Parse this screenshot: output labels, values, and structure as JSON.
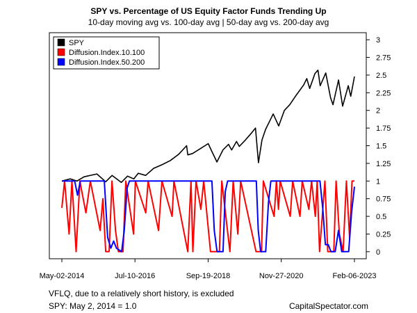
{
  "chart_data": {
    "type": "line",
    "title": "SPY vs. Percentage of US Equity Factor Funds Trending Up",
    "subtitle": "10-day moving avg vs. 100-day avg | 50-day avg vs. 200-day avg",
    "x_tick_labels": [
      "May-02-2014",
      "Jul-10-2016",
      "Sep-19-2018",
      "Nov-27-2020",
      "Feb-06-2023"
    ],
    "x_tick_dates": [
      "2014-05-02",
      "2016-07-10",
      "2018-09-19",
      "2020-11-27",
      "2023-02-06"
    ],
    "xlim": [
      "2014-05-02",
      "2023-02-06"
    ],
    "ylim": [
      -0.1,
      3.1
    ],
    "y_ticks": [
      0,
      0.25,
      0.5,
      0.75,
      1,
      1.25,
      1.5,
      1.75,
      2,
      2.25,
      2.5,
      2.75,
      3
    ],
    "y_axis_side": "right",
    "legend_position": "top-left",
    "series": [
      {
        "name": "SPY",
        "color": "#000000",
        "points": [
          [
            "2014-05-02",
            1.0
          ],
          [
            "2014-08-01",
            1.03
          ],
          [
            "2014-10-15",
            1.0
          ],
          [
            "2014-12-31",
            1.06
          ],
          [
            "2015-05-20",
            1.1
          ],
          [
            "2015-08-25",
            0.99
          ],
          [
            "2015-11-03",
            1.08
          ],
          [
            "2016-02-11",
            0.98
          ],
          [
            "2016-04-20",
            1.07
          ],
          [
            "2016-06-27",
            1.03
          ],
          [
            "2016-08-15",
            1.11
          ],
          [
            "2016-11-04",
            1.08
          ],
          [
            "2017-01-31",
            1.18
          ],
          [
            "2017-05-01",
            1.23
          ],
          [
            "2017-08-01",
            1.29
          ],
          [
            "2017-11-01",
            1.38
          ],
          [
            "2018-01-26",
            1.5
          ],
          [
            "2018-02-08",
            1.37
          ],
          [
            "2018-04-02",
            1.39
          ],
          [
            "2018-06-15",
            1.45
          ],
          [
            "2018-09-20",
            1.53
          ],
          [
            "2018-10-29",
            1.42
          ],
          [
            "2018-12-24",
            1.27
          ],
          [
            "2019-02-28",
            1.44
          ],
          [
            "2019-04-30",
            1.52
          ],
          [
            "2019-06-03",
            1.44
          ],
          [
            "2019-07-26",
            1.56
          ],
          [
            "2019-08-26",
            1.49
          ],
          [
            "2019-10-31",
            1.58
          ],
          [
            "2019-12-31",
            1.67
          ],
          [
            "2020-02-19",
            1.75
          ],
          [
            "2020-03-23",
            1.26
          ],
          [
            "2020-04-30",
            1.58
          ],
          [
            "2020-06-08",
            1.73
          ],
          [
            "2020-08-31",
            1.95
          ],
          [
            "2020-10-30",
            1.78
          ],
          [
            "2020-12-31",
            2.0
          ],
          [
            "2021-02-28",
            2.08
          ],
          [
            "2021-05-01",
            2.2
          ],
          [
            "2021-07-30",
            2.36
          ],
          [
            "2021-09-02",
            2.45
          ],
          [
            "2021-10-04",
            2.31
          ],
          [
            "2021-11-30",
            2.52
          ],
          [
            "2022-01-03",
            2.57
          ],
          [
            "2022-01-27",
            2.35
          ],
          [
            "2022-03-29",
            2.53
          ],
          [
            "2022-05-20",
            2.18
          ],
          [
            "2022-06-16",
            2.08
          ],
          [
            "2022-08-16",
            2.43
          ],
          [
            "2022-09-30",
            2.06
          ],
          [
            "2022-11-30",
            2.35
          ],
          [
            "2022-12-28",
            2.2
          ],
          [
            "2023-02-06",
            2.48
          ]
        ]
      },
      {
        "name": "Diffusion.Index.10.100",
        "color": "#ff0000",
        "points": [
          [
            "2014-05-02",
            0.62
          ],
          [
            "2014-06-01",
            1.0
          ],
          [
            "2014-07-20",
            0.25
          ],
          [
            "2014-08-20",
            1.0
          ],
          [
            "2014-10-05",
            0.0
          ],
          [
            "2014-11-15",
            1.0
          ],
          [
            "2015-01-20",
            0.55
          ],
          [
            "2015-03-10",
            1.0
          ],
          [
            "2015-06-25",
            0.3
          ],
          [
            "2015-07-25",
            0.75
          ],
          [
            "2015-08-25",
            0.0
          ],
          [
            "2015-10-01",
            0.0
          ],
          [
            "2015-11-01",
            1.0
          ],
          [
            "2015-12-10",
            0.3
          ],
          [
            "2016-01-10",
            0.0
          ],
          [
            "2016-03-01",
            0.0
          ],
          [
            "2016-04-01",
            1.0
          ],
          [
            "2016-06-25",
            0.25
          ],
          [
            "2016-07-15",
            1.0
          ],
          [
            "2016-11-05",
            0.55
          ],
          [
            "2016-12-01",
            1.0
          ],
          [
            "2017-03-25",
            0.3
          ],
          [
            "2017-05-01",
            1.0
          ],
          [
            "2017-08-20",
            0.5
          ],
          [
            "2017-09-10",
            1.0
          ],
          [
            "2018-02-08",
            0.0
          ],
          [
            "2018-03-15",
            1.0
          ],
          [
            "2018-04-05",
            0.0
          ],
          [
            "2018-05-10",
            1.0
          ],
          [
            "2018-07-01",
            0.6
          ],
          [
            "2018-08-01",
            1.0
          ],
          [
            "2018-10-15",
            0.0
          ],
          [
            "2019-01-20",
            0.0
          ],
          [
            "2019-02-15",
            1.0
          ],
          [
            "2019-05-15",
            0.0
          ],
          [
            "2019-06-20",
            1.0
          ],
          [
            "2019-08-10",
            0.25
          ],
          [
            "2019-09-10",
            1.0
          ],
          [
            "2020-02-25",
            0.0
          ],
          [
            "2020-04-25",
            0.0
          ],
          [
            "2020-05-15",
            1.0
          ],
          [
            "2020-09-10",
            0.5
          ],
          [
            "2020-10-05",
            1.0
          ],
          [
            "2020-10-28",
            0.6
          ],
          [
            "2020-11-15",
            1.0
          ],
          [
            "2021-03-05",
            0.5
          ],
          [
            "2021-04-01",
            1.0
          ],
          [
            "2021-06-20",
            0.5
          ],
          [
            "2021-07-15",
            1.0
          ],
          [
            "2021-09-25",
            0.6
          ],
          [
            "2021-10-25",
            1.0
          ],
          [
            "2021-12-05",
            0.5
          ],
          [
            "2021-12-25",
            1.0
          ],
          [
            "2022-01-20",
            0.0
          ],
          [
            "2022-03-20",
            1.0
          ],
          [
            "2022-04-20",
            0.0
          ],
          [
            "2022-06-25",
            0.0
          ],
          [
            "2022-07-20",
            1.0
          ],
          [
            "2022-08-25",
            0.25
          ],
          [
            "2022-10-05",
            0.0
          ],
          [
            "2022-11-10",
            1.0
          ],
          [
            "2022-12-15",
            0.2
          ],
          [
            "2023-01-10",
            1.0
          ],
          [
            "2023-02-06",
            1.0
          ]
        ]
      },
      {
        "name": "Diffusion.Index.50.200",
        "color": "#0000ff",
        "points": [
          [
            "2014-05-02",
            1.0
          ],
          [
            "2014-09-20",
            1.0
          ],
          [
            "2014-10-20",
            0.8
          ],
          [
            "2014-11-20",
            1.0
          ],
          [
            "2015-08-10",
            1.0
          ],
          [
            "2015-09-15",
            0.2
          ],
          [
            "2015-10-20",
            0.05
          ],
          [
            "2015-11-20",
            0.15
          ],
          [
            "2015-12-20",
            0.05
          ],
          [
            "2016-02-15",
            0.0
          ],
          [
            "2016-03-15",
            0.3
          ],
          [
            "2016-04-15",
            0.9
          ],
          [
            "2016-05-10",
            1.0
          ],
          [
            "2018-10-30",
            1.0
          ],
          [
            "2018-11-25",
            0.3
          ],
          [
            "2018-12-25",
            0.0
          ],
          [
            "2019-03-01",
            0.0
          ],
          [
            "2019-03-25",
            0.85
          ],
          [
            "2019-04-20",
            1.0
          ],
          [
            "2020-02-28",
            1.0
          ],
          [
            "2020-03-20",
            0.3
          ],
          [
            "2020-04-15",
            0.0
          ],
          [
            "2020-06-10",
            0.0
          ],
          [
            "2020-07-10",
            0.7
          ],
          [
            "2020-08-05",
            1.0
          ],
          [
            "2022-01-25",
            1.0
          ],
          [
            "2022-02-25",
            0.6
          ],
          [
            "2022-03-25",
            0.1
          ],
          [
            "2022-04-25",
            0.1
          ],
          [
            "2022-05-25",
            0.0
          ],
          [
            "2022-07-10",
            0.0
          ],
          [
            "2022-08-15",
            0.3
          ],
          [
            "2022-09-20",
            0.0
          ],
          [
            "2022-12-05",
            0.0
          ],
          [
            "2023-01-05",
            0.55
          ],
          [
            "2023-02-06",
            0.92
          ]
        ]
      }
    ]
  },
  "footer": {
    "note1": "VFLQ, due to a  relatively short history, is excluded",
    "note2": "SPY: May 2, 2014 = 1.0",
    "credit": "CapitalSpectator.com"
  }
}
